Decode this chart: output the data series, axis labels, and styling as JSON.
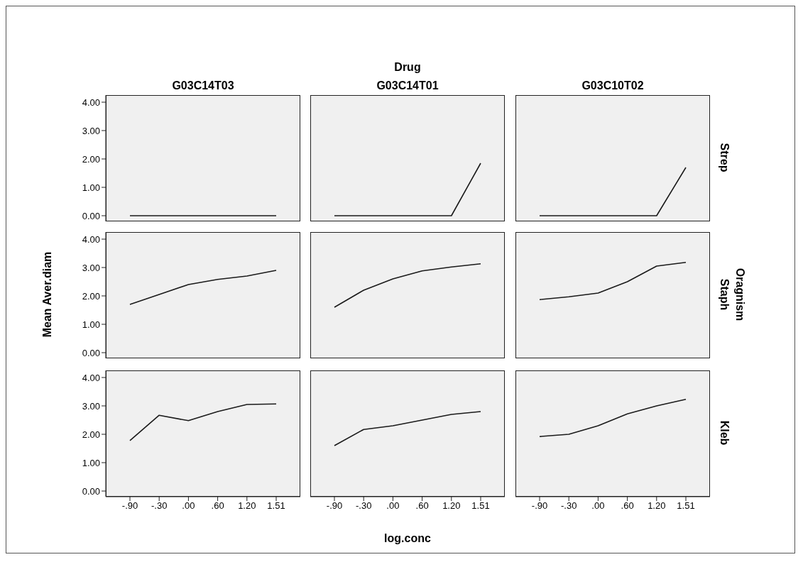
{
  "chart_data": [
    {
      "type": "line",
      "title": "G03C14T03",
      "categories": [
        "-.90",
        "-.30",
        ".00",
        ".60",
        "1.20",
        "1.51"
      ],
      "values": [
        0,
        0,
        0,
        0,
        0,
        0
      ],
      "color": "#1a1a1a",
      "ylim": [
        -0.2,
        4.25
      ],
      "yticks": [
        {
          "value": 0,
          "label": "0.00"
        },
        {
          "value": 1,
          "label": "1.00"
        },
        {
          "value": 2,
          "label": "2.00"
        },
        {
          "value": 3,
          "label": "3.00"
        },
        {
          "value": 4,
          "label": "4.00"
        }
      ],
      "tick_labels": "y"
    },
    {
      "type": "line",
      "title": "G03C14T01",
      "annotations": [
        "Drug"
      ],
      "categories": [
        "-.90",
        "-.30",
        ".00",
        ".60",
        "1.20",
        "1.51"
      ],
      "values": [
        0,
        0,
        0,
        0,
        0,
        1.85
      ],
      "color": "#1a1a1a",
      "ylim": [
        -0.2,
        4.25
      ],
      "tick_labels": false
    },
    {
      "type": "line",
      "title": "G03C10T02",
      "y2label": "Strep",
      "categories": [
        "-.90",
        "-.30",
        ".00",
        ".60",
        "1.20",
        "1.51"
      ],
      "values": [
        0,
        0,
        0,
        0,
        0,
        1.7
      ],
      "color": "#1a1a1a",
      "ylim": [
        -0.2,
        4.25
      ],
      "tick_labels": false
    },
    {
      "type": "line",
      "ylabel": "Mean Aver.diam",
      "categories": [
        "-.90",
        "-.30",
        ".00",
        ".60",
        "1.20",
        "1.51"
      ],
      "values": [
        1.7,
        2.05,
        2.4,
        2.58,
        2.7,
        2.9
      ],
      "color": "#1a1a1a",
      "ylim": [
        -0.2,
        4.25
      ],
      "yticks": [
        {
          "value": 0,
          "label": "0.00"
        },
        {
          "value": 1,
          "label": "1.00"
        },
        {
          "value": 2,
          "label": "2.00"
        },
        {
          "value": 3,
          "label": "3.00"
        },
        {
          "value": 4,
          "label": "4.00"
        }
      ],
      "tick_labels": "y"
    },
    {
      "type": "line",
      "categories": [
        "-.90",
        "-.30",
        ".00",
        ".60",
        "1.20",
        "1.51"
      ],
      "values": [
        1.6,
        2.2,
        2.6,
        2.88,
        3.02,
        3.13
      ],
      "color": "#1a1a1a",
      "ylim": [
        -0.2,
        4.25
      ],
      "tick_labels": false
    },
    {
      "type": "line",
      "y2label": "Staph",
      "annotations": [
        "Oragnism"
      ],
      "categories": [
        "-.90",
        "-.30",
        ".00",
        ".60",
        "1.20",
        "1.51"
      ],
      "values": [
        1.87,
        1.97,
        2.1,
        2.5,
        3.05,
        3.18
      ],
      "color": "#1a1a1a",
      "ylim": [
        -0.2,
        4.25
      ],
      "tick_labels": false
    },
    {
      "type": "line",
      "categories": [
        "-.90",
        "-.30",
        ".00",
        ".60",
        "1.20",
        "1.51"
      ],
      "values": [
        1.78,
        2.67,
        2.48,
        2.8,
        3.05,
        3.07
      ],
      "color": "#1a1a1a",
      "ylim": [
        -0.2,
        4.25
      ],
      "yticks": [
        {
          "value": 0,
          "label": "0.00"
        },
        {
          "value": 1,
          "label": "1.00"
        },
        {
          "value": 2,
          "label": "2.00"
        },
        {
          "value": 3,
          "label": "3.00"
        },
        {
          "value": 4,
          "label": "4.00"
        }
      ]
    },
    {
      "type": "line",
      "xlabel": "log.conc",
      "categories": [
        "-.90",
        "-.30",
        ".00",
        ".60",
        "1.20",
        "1.51"
      ],
      "values": [
        1.6,
        2.17,
        2.3,
        2.5,
        2.7,
        2.8
      ],
      "color": "#1a1a1a",
      "ylim": [
        -0.2,
        4.25
      ],
      "tick_labels": "x"
    },
    {
      "type": "line",
      "y2label": "Kleb",
      "categories": [
        "-.90",
        "-.30",
        ".00",
        ".60",
        "1.20",
        "1.51"
      ],
      "values": [
        1.92,
        2.0,
        2.3,
        2.72,
        3.0,
        3.23
      ],
      "color": "#1a1a1a",
      "ylim": [
        -0.2,
        4.25
      ],
      "tick_labels": "x"
    }
  ]
}
